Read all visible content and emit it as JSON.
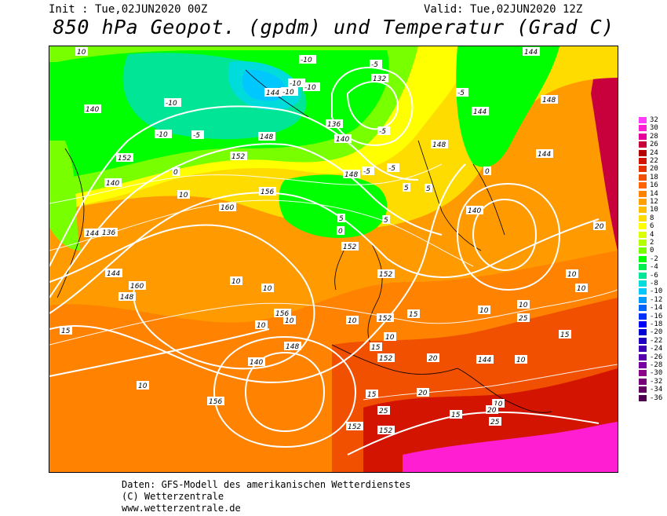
{
  "header": {
    "init": "Init : Tue,02JUN2020 00Z",
    "valid": "Valid: Tue,02JUN2020 12Z",
    "title": "850 hPa Geopot. (gpdm) und Temperatur (Grad C)"
  },
  "footer": {
    "line1": "Daten: GFS-Modell des amerikanischen Wetterdienstes",
    "line2": "(C) Wetterzentrale",
    "line3": "www.wetterzentrale.de"
  },
  "legend": {
    "entries": [
      {
        "label": "32",
        "color": "#ff3cff"
      },
      {
        "label": "30",
        "color": "#ff1ed2"
      },
      {
        "label": "28",
        "color": "#e6009b"
      },
      {
        "label": "26",
        "color": "#c8003c"
      },
      {
        "label": "24",
        "color": "#b40000"
      },
      {
        "label": "22",
        "color": "#d21400"
      },
      {
        "label": "20",
        "color": "#e63200"
      },
      {
        "label": "18",
        "color": "#f05000"
      },
      {
        "label": "16",
        "color": "#ff6400"
      },
      {
        "label": "14",
        "color": "#ff8200"
      },
      {
        "label": "12",
        "color": "#ffa000"
      },
      {
        "label": "10",
        "color": "#ffbe00"
      },
      {
        "label": "8",
        "color": "#ffdc00"
      },
      {
        "label": "6",
        "color": "#ffff00"
      },
      {
        "label": "4",
        "color": "#dcff00"
      },
      {
        "label": "2",
        "color": "#b4ff00"
      },
      {
        "label": "0",
        "color": "#78ff00"
      },
      {
        "label": "-2",
        "color": "#00ff00"
      },
      {
        "label": "-4",
        "color": "#00f050"
      },
      {
        "label": "-6",
        "color": "#00e696"
      },
      {
        "label": "-8",
        "color": "#00dcdc"
      },
      {
        "label": "-10",
        "color": "#00c8ff"
      },
      {
        "label": "-12",
        "color": "#009bff"
      },
      {
        "label": "-14",
        "color": "#0064ff"
      },
      {
        "label": "-16",
        "color": "#0032ff"
      },
      {
        "label": "-18",
        "color": "#0000ff"
      },
      {
        "label": "-20",
        "color": "#0000d2"
      },
      {
        "label": "-22",
        "color": "#1e00be"
      },
      {
        "label": "-24",
        "color": "#3c00b4"
      },
      {
        "label": "-26",
        "color": "#5a00aa"
      },
      {
        "label": "-28",
        "color": "#7800a0"
      },
      {
        "label": "-30",
        "color": "#8c008c"
      },
      {
        "label": "-32",
        "color": "#780078"
      },
      {
        "label": "-34",
        "color": "#640064"
      },
      {
        "label": "-36",
        "color": "#500050"
      }
    ]
  },
  "map_labels": {
    "geopotential": [
      "160",
      "160",
      "156",
      "156",
      "156",
      "152",
      "152",
      "152",
      "152",
      "152",
      "152",
      "152",
      "152",
      "148",
      "148",
      "148",
      "148",
      "148",
      "148",
      "144",
      "144",
      "144",
      "144",
      "144",
      "144",
      "144",
      "140",
      "140",
      "140",
      "140",
      "140",
      "136",
      "136",
      "132"
    ],
    "temperature": [
      "10",
      "10",
      "10",
      "10",
      "10",
      "10",
      "10",
      "10",
      "10",
      "10",
      "10",
      "10",
      "10",
      "10",
      "10",
      "15",
      "15",
      "15",
      "15",
      "15",
      "15",
      "20",
      "20",
      "20",
      "20",
      "25",
      "25",
      "25",
      "0",
      "0",
      "0",
      "5",
      "5",
      "5",
      "5",
      "-5",
      "-5",
      "-5",
      "-5",
      "-5",
      "-5",
      "-10",
      "-10",
      "-10",
      "-10",
      "-10",
      "-10"
    ]
  }
}
